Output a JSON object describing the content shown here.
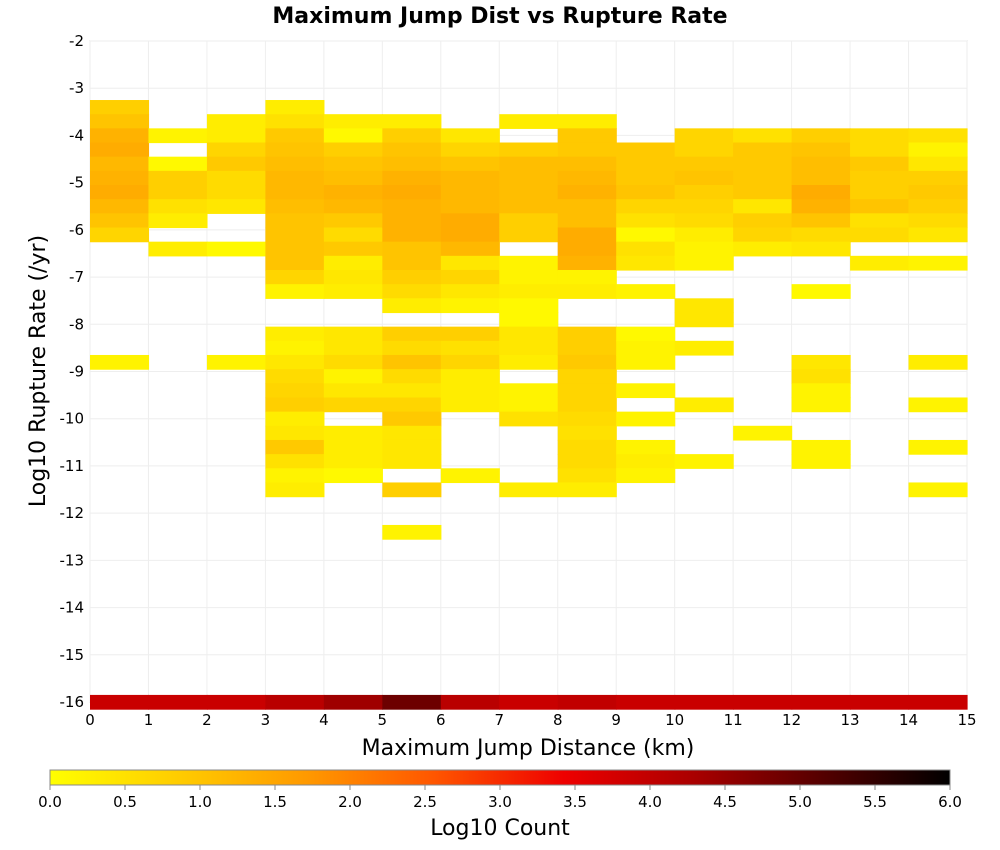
{
  "chart_data": {
    "type": "heatmap",
    "title": "Maximum Jump Dist vs Rupture Rate",
    "xlabel": "Maximum Jump Distance (km)",
    "ylabel": "Log10 Rupture Rate (/yr)",
    "xlim": [
      0,
      15
    ],
    "ylim": [
      -16,
      -2
    ],
    "x_ticks": [
      0,
      1,
      2,
      3,
      4,
      5,
      6,
      7,
      8,
      9,
      10,
      11,
      12,
      13,
      14,
      15
    ],
    "y_ticks": [
      -2,
      -3,
      -4,
      -5,
      -6,
      -7,
      -8,
      -9,
      -10,
      -11,
      -12,
      -13,
      -14,
      -15,
      -16
    ],
    "x_bin_width": 1,
    "y_bin_width": 0.3,
    "grid": true,
    "colorbar": {
      "label": "Log10 Count",
      "min": 0.0,
      "max": 6.0,
      "ticks": [
        "0.0",
        "0.5",
        "1.0",
        "1.5",
        "2.0",
        "2.5",
        "3.0",
        "3.5",
        "4.0",
        "4.5",
        "5.0",
        "5.5",
        "6.0"
      ],
      "colors": [
        "#ffff00",
        "#ffcc00",
        "#ff9900",
        "#ff5500",
        "#ee0000",
        "#aa0000",
        "#550000",
        "#000000"
      ]
    },
    "columns": [
      {
        "x": 0.5,
        "cells": [
          [
            -3.4,
            0.8
          ],
          [
            -3.7,
            1.0
          ],
          [
            -4.0,
            1.3
          ],
          [
            -4.3,
            1.4
          ],
          [
            -4.6,
            1.2
          ],
          [
            -4.9,
            1.3
          ],
          [
            -5.2,
            1.4
          ],
          [
            -5.5,
            1.2
          ],
          [
            -5.8,
            1.0
          ],
          [
            -6.1,
            0.7
          ],
          [
            -8.8,
            0.2
          ],
          [
            -16.0,
            3.9
          ]
        ]
      },
      {
        "x": 1.5,
        "cells": [
          [
            -4.0,
            0.2
          ],
          [
            -4.6,
            0.1
          ],
          [
            -4.9,
            0.8
          ],
          [
            -5.2,
            0.8
          ],
          [
            -5.5,
            0.5
          ],
          [
            -5.8,
            0.3
          ],
          [
            -6.4,
            0.3
          ],
          [
            -16.0,
            3.9
          ]
        ]
      },
      {
        "x": 2.5,
        "cells": [
          [
            -3.7,
            0.3
          ],
          [
            -4.0,
            0.3
          ],
          [
            -4.3,
            0.7
          ],
          [
            -4.6,
            0.9
          ],
          [
            -4.9,
            0.6
          ],
          [
            -5.2,
            0.6
          ],
          [
            -5.5,
            0.4
          ],
          [
            -6.4,
            0.1
          ],
          [
            -8.8,
            0.2
          ],
          [
            -16.0,
            3.9
          ]
        ]
      },
      {
        "x": 3.5,
        "cells": [
          [
            -3.4,
            0.3
          ],
          [
            -3.7,
            0.5
          ],
          [
            -4.0,
            0.9
          ],
          [
            -4.3,
            1.0
          ],
          [
            -4.6,
            1.1
          ],
          [
            -4.9,
            1.2
          ],
          [
            -5.2,
            1.2
          ],
          [
            -5.5,
            1.1
          ],
          [
            -5.8,
            1.0
          ],
          [
            -6.1,
            1.0
          ],
          [
            -6.4,
            1.0
          ],
          [
            -6.7,
            1.0
          ],
          [
            -7.0,
            0.7
          ],
          [
            -7.3,
            0.2
          ],
          [
            -8.2,
            0.3
          ],
          [
            -8.5,
            0.2
          ],
          [
            -8.8,
            0.4
          ],
          [
            -9.1,
            0.6
          ],
          [
            -9.4,
            0.7
          ],
          [
            -9.7,
            0.8
          ],
          [
            -10.0,
            0.3
          ],
          [
            -10.3,
            0.4
          ],
          [
            -10.6,
            0.9
          ],
          [
            -10.9,
            0.5
          ],
          [
            -11.2,
            0.2
          ],
          [
            -11.5,
            0.3
          ],
          [
            -16.0,
            4.1
          ]
        ]
      },
      {
        "x": 4.5,
        "cells": [
          [
            -3.7,
            0.3
          ],
          [
            -4.0,
            0.1
          ],
          [
            -4.3,
            0.8
          ],
          [
            -4.6,
            1.0
          ],
          [
            -4.9,
            1.1
          ],
          [
            -5.2,
            1.3
          ],
          [
            -5.5,
            1.2
          ],
          [
            -5.8,
            0.9
          ],
          [
            -6.1,
            0.6
          ],
          [
            -6.4,
            0.9
          ],
          [
            -6.7,
            0.3
          ],
          [
            -7.0,
            0.4
          ],
          [
            -7.3,
            0.3
          ],
          [
            -8.2,
            0.4
          ],
          [
            -8.5,
            0.4
          ],
          [
            -8.8,
            0.6
          ],
          [
            -9.1,
            0.2
          ],
          [
            -9.4,
            0.4
          ],
          [
            -9.7,
            0.7
          ],
          [
            -10.3,
            0.3
          ],
          [
            -10.6,
            0.3
          ],
          [
            -10.9,
            0.3
          ],
          [
            -11.2,
            0.1
          ],
          [
            -16.0,
            4.4
          ]
        ]
      },
      {
        "x": 5.5,
        "cells": [
          [
            -3.7,
            0.3
          ],
          [
            -4.0,
            0.8
          ],
          [
            -4.3,
            1.0
          ],
          [
            -4.6,
            1.1
          ],
          [
            -4.9,
            1.3
          ],
          [
            -5.2,
            1.4
          ],
          [
            -5.5,
            1.3
          ],
          [
            -5.8,
            1.3
          ],
          [
            -6.1,
            1.3
          ],
          [
            -6.4,
            1.0
          ],
          [
            -6.7,
            1.0
          ],
          [
            -7.0,
            0.8
          ],
          [
            -7.3,
            0.6
          ],
          [
            -7.6,
            0.3
          ],
          [
            -8.2,
            0.8
          ],
          [
            -8.5,
            0.6
          ],
          [
            -8.8,
            1.0
          ],
          [
            -9.1,
            0.6
          ],
          [
            -9.4,
            0.4
          ],
          [
            -9.7,
            0.7
          ],
          [
            -10.0,
            0.9
          ],
          [
            -10.3,
            0.4
          ],
          [
            -10.6,
            0.4
          ],
          [
            -10.9,
            0.4
          ],
          [
            -11.5,
            0.8
          ],
          [
            -12.4,
            0.2
          ],
          [
            -16.0,
            4.9
          ]
        ]
      },
      {
        "x": 6.5,
        "cells": [
          [
            -4.0,
            0.4
          ],
          [
            -4.3,
            0.7
          ],
          [
            -4.6,
            1.0
          ],
          [
            -4.9,
            1.2
          ],
          [
            -5.2,
            1.2
          ],
          [
            -5.5,
            1.2
          ],
          [
            -5.8,
            1.4
          ],
          [
            -6.1,
            1.4
          ],
          [
            -6.4,
            1.2
          ],
          [
            -6.7,
            0.4
          ],
          [
            -7.0,
            0.7
          ],
          [
            -7.3,
            0.4
          ],
          [
            -7.6,
            0.2
          ],
          [
            -8.2,
            0.8
          ],
          [
            -8.5,
            0.5
          ],
          [
            -8.8,
            0.7
          ],
          [
            -9.1,
            0.3
          ],
          [
            -9.4,
            0.3
          ],
          [
            -9.7,
            0.3
          ],
          [
            -11.2,
            0.2
          ],
          [
            -16.0,
            4.1
          ]
        ]
      },
      {
        "x": 7.5,
        "cells": [
          [
            -3.7,
            0.3
          ],
          [
            -4.3,
            0.8
          ],
          [
            -4.6,
            1.1
          ],
          [
            -4.9,
            1.1
          ],
          [
            -5.2,
            1.1
          ],
          [
            -5.5,
            1.1
          ],
          [
            -5.8,
            0.8
          ],
          [
            -6.1,
            0.8
          ],
          [
            -6.7,
            0.2
          ],
          [
            -7.0,
            0.2
          ],
          [
            -7.3,
            0.3
          ],
          [
            -7.6,
            0.1
          ],
          [
            -7.9,
            0.1
          ],
          [
            -8.2,
            0.4
          ],
          [
            -8.5,
            0.4
          ],
          [
            -8.8,
            0.3
          ],
          [
            -9.4,
            0.2
          ],
          [
            -9.7,
            0.2
          ],
          [
            -10.0,
            0.5
          ],
          [
            -11.5,
            0.3
          ],
          [
            -16.0,
            3.9
          ]
        ]
      },
      {
        "x": 8.5,
        "cells": [
          [
            -3.7,
            0.3
          ],
          [
            -4.0,
            0.9
          ],
          [
            -4.3,
            0.9
          ],
          [
            -4.6,
            1.1
          ],
          [
            -4.9,
            1.2
          ],
          [
            -5.2,
            1.3
          ],
          [
            -5.5,
            1.1
          ],
          [
            -5.8,
            1.1
          ],
          [
            -6.1,
            1.4
          ],
          [
            -6.4,
            1.4
          ],
          [
            -6.7,
            1.3
          ],
          [
            -7.0,
            0.2
          ],
          [
            -7.3,
            0.3
          ],
          [
            -8.2,
            0.8
          ],
          [
            -8.5,
            0.8
          ],
          [
            -8.8,
            0.9
          ],
          [
            -9.1,
            0.7
          ],
          [
            -9.4,
            0.7
          ],
          [
            -9.7,
            0.7
          ],
          [
            -10.0,
            0.6
          ],
          [
            -10.3,
            0.5
          ],
          [
            -10.6,
            0.6
          ],
          [
            -10.9,
            0.6
          ],
          [
            -11.2,
            0.5
          ],
          [
            -11.5,
            0.3
          ],
          [
            -16.0,
            4.0
          ]
        ]
      },
      {
        "x": 9.5,
        "cells": [
          [
            -4.3,
            0.9
          ],
          [
            -4.6,
            0.9
          ],
          [
            -4.9,
            0.9
          ],
          [
            -5.2,
            1.0
          ],
          [
            -5.5,
            0.7
          ],
          [
            -5.8,
            0.5
          ],
          [
            -6.1,
            0.1
          ],
          [
            -6.4,
            0.5
          ],
          [
            -6.7,
            0.4
          ],
          [
            -7.3,
            0.2
          ],
          [
            -8.2,
            0.1
          ],
          [
            -8.5,
            0.2
          ],
          [
            -8.8,
            0.2
          ],
          [
            -9.4,
            0.2
          ],
          [
            -10.0,
            0.2
          ],
          [
            -10.6,
            0.2
          ],
          [
            -10.9,
            0.3
          ],
          [
            -11.2,
            0.2
          ],
          [
            -16.0,
            3.9
          ]
        ]
      },
      {
        "x": 10.5,
        "cells": [
          [
            -4.0,
            0.7
          ],
          [
            -4.3,
            0.7
          ],
          [
            -4.6,
            0.9
          ],
          [
            -4.9,
            1.0
          ],
          [
            -5.2,
            0.8
          ],
          [
            -5.5,
            0.7
          ],
          [
            -5.8,
            0.6
          ],
          [
            -6.1,
            0.3
          ],
          [
            -6.4,
            0.2
          ],
          [
            -6.7,
            0.2
          ],
          [
            -7.6,
            0.4
          ],
          [
            -7.9,
            0.4
          ],
          [
            -8.5,
            0.3
          ],
          [
            -9.7,
            0.3
          ],
          [
            -10.9,
            0.2
          ],
          [
            -16.0,
            3.9
          ]
        ]
      },
      {
        "x": 11.5,
        "cells": [
          [
            -4.0,
            0.5
          ],
          [
            -4.3,
            0.9
          ],
          [
            -4.6,
            0.9
          ],
          [
            -4.9,
            0.9
          ],
          [
            -5.2,
            0.9
          ],
          [
            -5.5,
            0.4
          ],
          [
            -5.8,
            0.8
          ],
          [
            -6.1,
            0.7
          ],
          [
            -6.4,
            0.3
          ],
          [
            -10.3,
            0.2
          ],
          [
            -16.0,
            3.9
          ]
        ]
      },
      {
        "x": 12.5,
        "cells": [
          [
            -4.0,
            0.8
          ],
          [
            -4.3,
            1.0
          ],
          [
            -4.6,
            1.1
          ],
          [
            -4.9,
            1.1
          ],
          [
            -5.2,
            1.4
          ],
          [
            -5.5,
            1.3
          ],
          [
            -5.8,
            1.0
          ],
          [
            -6.1,
            0.6
          ],
          [
            -6.4,
            0.4
          ],
          [
            -7.3,
            0.1
          ],
          [
            -8.8,
            0.4
          ],
          [
            -9.1,
            0.5
          ],
          [
            -9.4,
            0.2
          ],
          [
            -9.7,
            0.2
          ],
          [
            -10.6,
            0.2
          ],
          [
            -10.9,
            0.2
          ],
          [
            -16.0,
            3.9
          ]
        ]
      },
      {
        "x": 13.5,
        "cells": [
          [
            -4.0,
            0.6
          ],
          [
            -4.3,
            0.6
          ],
          [
            -4.6,
            0.9
          ],
          [
            -4.9,
            0.8
          ],
          [
            -5.2,
            0.8
          ],
          [
            -5.5,
            1.0
          ],
          [
            -5.8,
            0.5
          ],
          [
            -6.1,
            0.6
          ],
          [
            -6.7,
            0.3
          ],
          [
            -16.0,
            3.9
          ]
        ]
      },
      {
        "x": 14.5,
        "cells": [
          [
            -4.0,
            0.5
          ],
          [
            -4.3,
            0.2
          ],
          [
            -4.6,
            0.4
          ],
          [
            -4.9,
            0.8
          ],
          [
            -5.2,
            0.9
          ],
          [
            -5.5,
            0.8
          ],
          [
            -5.8,
            0.6
          ],
          [
            -6.1,
            0.4
          ],
          [
            -6.7,
            0.2
          ],
          [
            -8.8,
            0.3
          ],
          [
            -9.7,
            0.2
          ],
          [
            -10.6,
            0.2
          ],
          [
            -11.5,
            0.2
          ],
          [
            -16.0,
            3.9
          ]
        ]
      }
    ]
  }
}
